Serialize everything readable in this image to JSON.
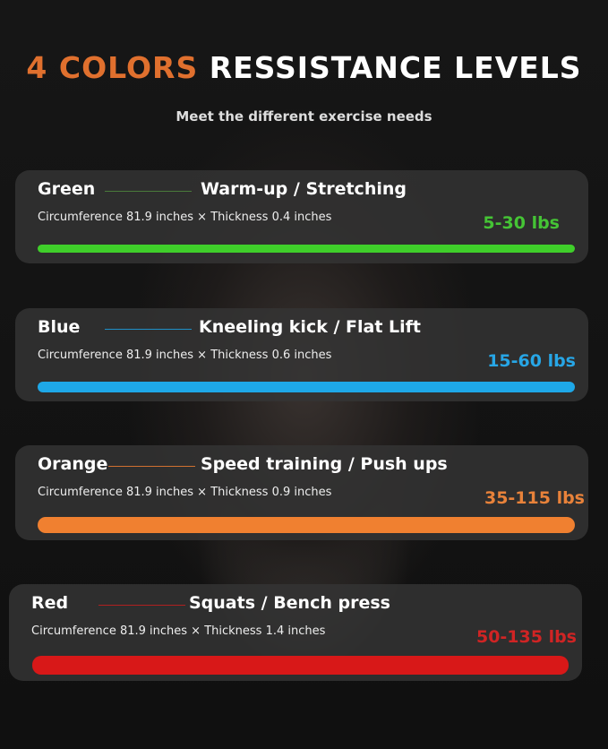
{
  "title": {
    "accent": "4 COLORS",
    "rest": "RESSISTANCE LEVELS"
  },
  "subtitle": "Meet the different exercise needs",
  "bands": [
    {
      "color_name": "Green",
      "use": "Warm-up / Stretching",
      "dimensions": "Circumference 81.9 inches × Thickness 0.4 inches",
      "range": "5-30 lbs",
      "color": "#3fcf2a",
      "line": "#4a7a3a",
      "text_color": "#45c435"
    },
    {
      "color_name": "Blue",
      "use": "Kneeling kick / Flat Lift",
      "dimensions": "Circumference 81.9 inches × Thickness 0.6 inches",
      "range": "15-60  lbs",
      "color": "#1ea8e8",
      "line": "#1e90c8",
      "text_color": "#27a6e6"
    },
    {
      "color_name": "Orange",
      "use": "Speed training / Push ups",
      "dimensions": "Circumference 81.9 inches × Thickness 0.9 inches",
      "range": "35-115 lbs",
      "color": "#f08030",
      "line": "#d07030",
      "text_color": "#e8823a"
    },
    {
      "color_name": "Red",
      "use": "Squats / Bench press",
      "dimensions": "Circumference 81.9 inches × Thickness 1.4 inches",
      "range": "50-135 lbs",
      "color": "#d81818",
      "line": "#b02020",
      "text_color": "#d02424"
    }
  ]
}
